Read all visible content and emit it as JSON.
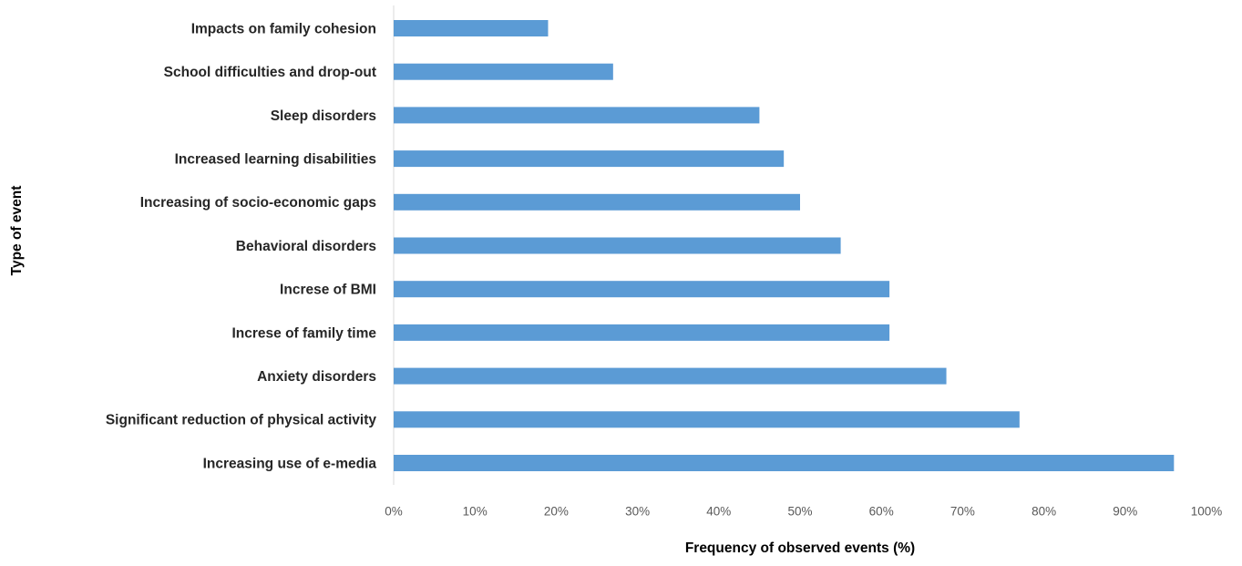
{
  "chart_data": {
    "type": "bar",
    "orientation": "horizontal",
    "categories": [
      "Impacts on family cohesion",
      "School difficulties and drop-out",
      "Sleep disorders",
      "Increased learning disabilities",
      "Increasing of socio-economic gaps",
      "Behavioral disorders",
      "Increse of BMI",
      "Increse of family time",
      "Anxiety disorders",
      "Significant reduction of physical activity",
      "Increasing use of e-media"
    ],
    "values": [
      19,
      27,
      45,
      48,
      50,
      55,
      61,
      61,
      68,
      77,
      96
    ],
    "xlabel": "Frequency of observed events (%)",
    "ylabel": "Type of event",
    "xlim": [
      0,
      100
    ],
    "x_ticks": [
      "0%",
      "10%",
      "20%",
      "30%",
      "40%",
      "50%",
      "60%",
      "70%",
      "80%",
      "90%",
      "100%"
    ],
    "grid": false,
    "legend": "none",
    "colors": {
      "bar": "#5B9BD5",
      "axis": "#D9D9D9"
    }
  }
}
